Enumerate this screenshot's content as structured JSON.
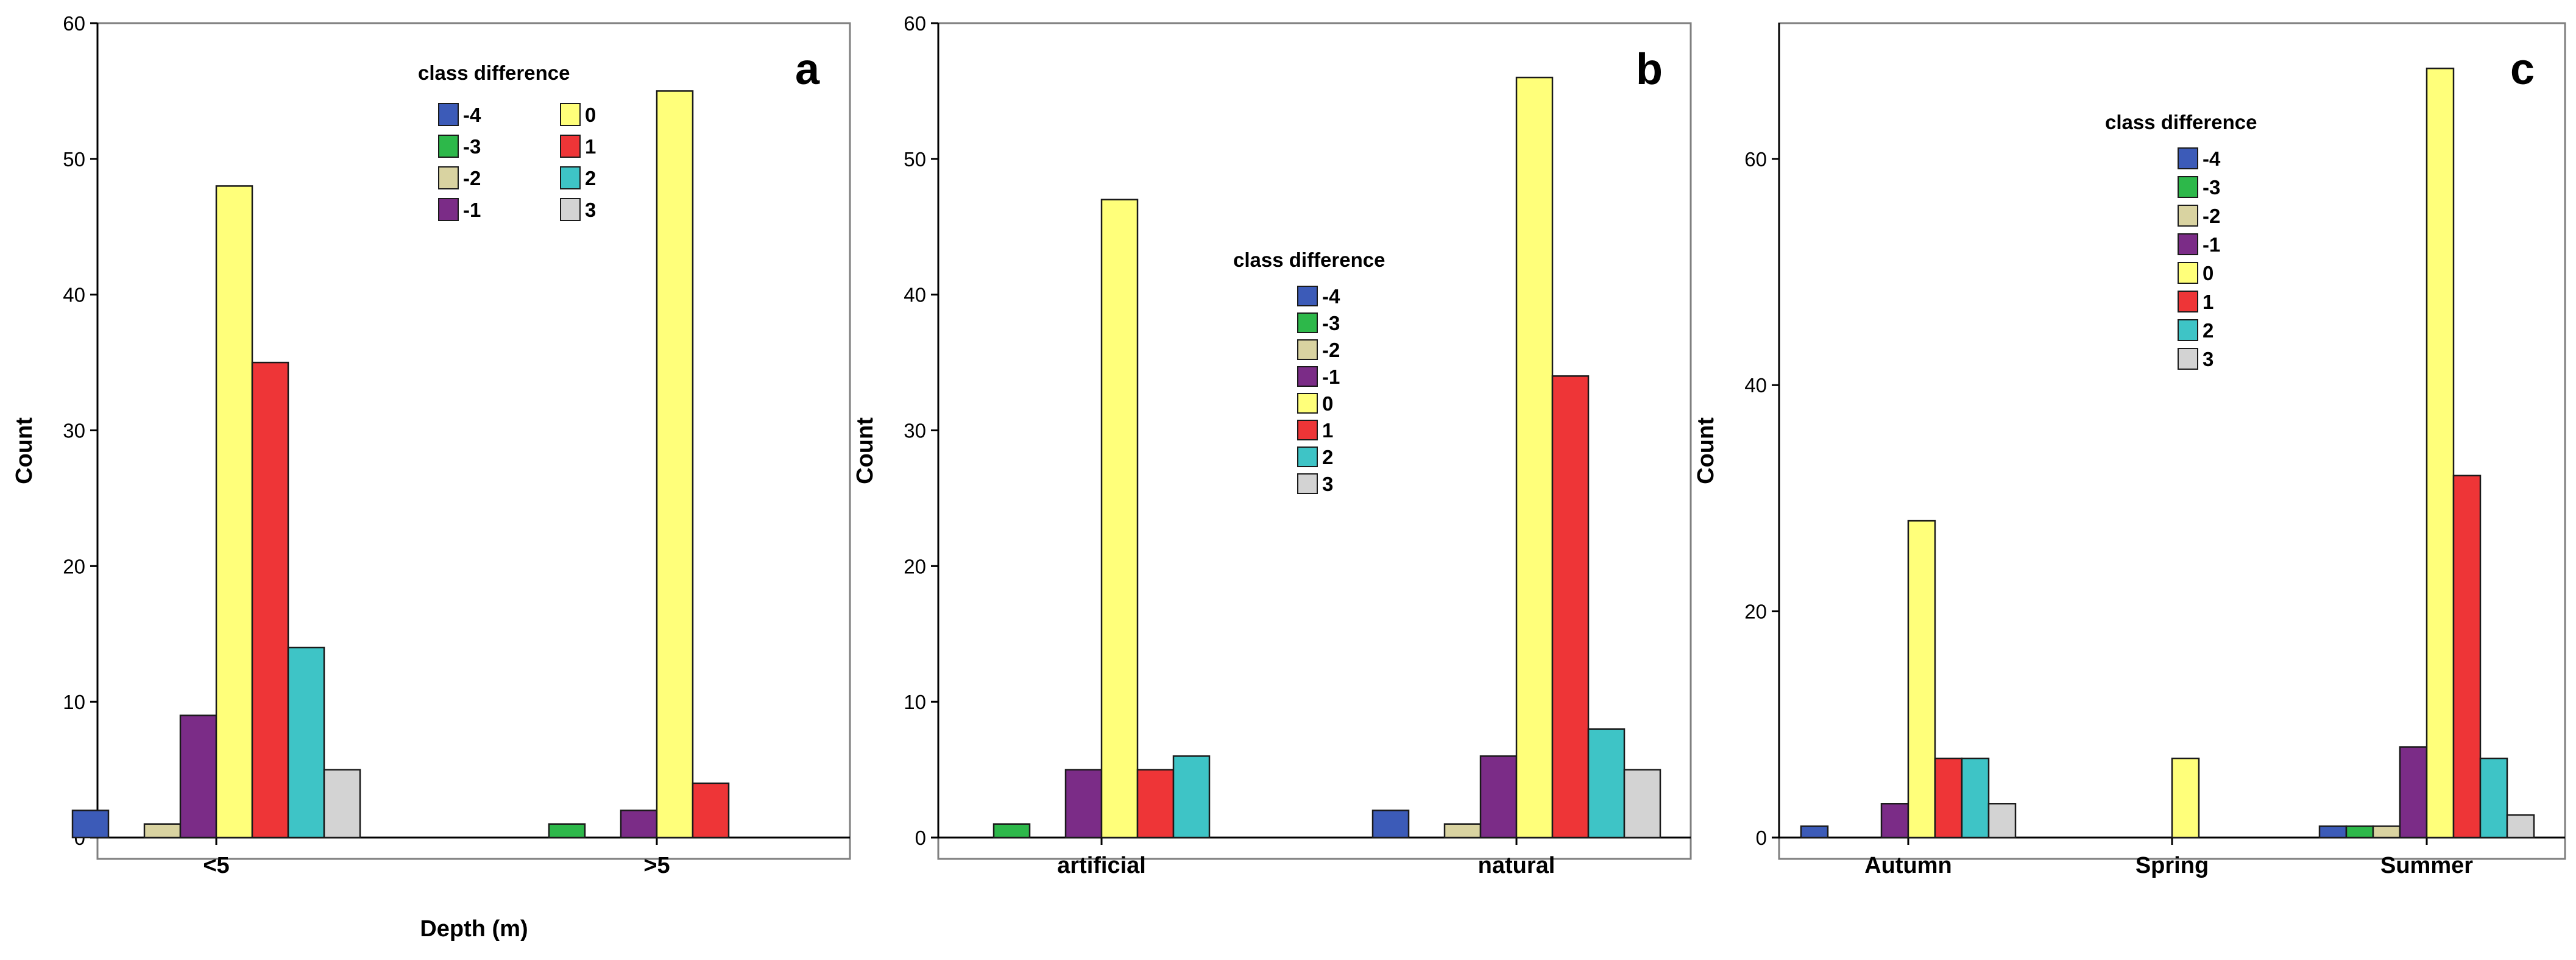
{
  "legend_title": "class difference",
  "series": [
    {
      "name": "-4",
      "color": "#3C5BB8"
    },
    {
      "name": "-3",
      "color": "#2DB84A"
    },
    {
      "name": "-2",
      "color": "#D9D3A1"
    },
    {
      "name": "-1",
      "color": "#7B2C87"
    },
    {
      "name": "0",
      "color": "#FFFF7A"
    },
    {
      "name": "1",
      "color": "#EE3537"
    },
    {
      "name": "2",
      "color": "#3EC4C6"
    },
    {
      "name": "3",
      "color": "#D3D3D3"
    }
  ],
  "chart_data": [
    {
      "id": "a",
      "panel_label": "a",
      "type": "bar",
      "ylabel": "Count",
      "xlabel": "Depth (m)",
      "ylim": [
        0,
        60
      ],
      "yticks": [
        0,
        10,
        20,
        30,
        40,
        50,
        60
      ],
      "categories": [
        "<5",
        ">5"
      ],
      "series": [
        {
          "name": "-4",
          "values": [
            2,
            0
          ]
        },
        {
          "name": "-3",
          "values": [
            0,
            1
          ]
        },
        {
          "name": "-2",
          "values": [
            1,
            0
          ]
        },
        {
          "name": "-1",
          "values": [
            9,
            2
          ]
        },
        {
          "name": "0",
          "values": [
            48,
            55
          ]
        },
        {
          "name": "1",
          "values": [
            35,
            4
          ]
        },
        {
          "name": "2",
          "values": [
            14,
            0
          ]
        },
        {
          "name": "3",
          "values": [
            5,
            0
          ]
        }
      ],
      "legend_placement": "top-center, two columns"
    },
    {
      "id": "b",
      "panel_label": "b",
      "type": "bar",
      "ylabel": "Count",
      "xlabel": "",
      "ylim": [
        0,
        60
      ],
      "yticks": [
        0,
        10,
        20,
        30,
        40,
        50,
        60
      ],
      "categories": [
        "artificial",
        "natural"
      ],
      "series": [
        {
          "name": "-4",
          "values": [
            0,
            2
          ]
        },
        {
          "name": "-3",
          "values": [
            1,
            0
          ]
        },
        {
          "name": "-2",
          "values": [
            0,
            1
          ]
        },
        {
          "name": "-1",
          "values": [
            5,
            6
          ]
        },
        {
          "name": "0",
          "values": [
            47,
            56
          ]
        },
        {
          "name": "1",
          "values": [
            5,
            34
          ]
        },
        {
          "name": "2",
          "values": [
            6,
            8
          ]
        },
        {
          "name": "3",
          "values": [
            0,
            5
          ]
        }
      ],
      "legend_placement": "center, one column"
    },
    {
      "id": "c",
      "panel_label": "c",
      "type": "bar",
      "ylabel": "Count",
      "xlabel": "",
      "ylim": [
        0,
        72
      ],
      "yticks": [
        0,
        20,
        40,
        60
      ],
      "categories": [
        "Autumn",
        "Spring",
        "Summer"
      ],
      "series": [
        {
          "name": "-4",
          "values": [
            1,
            0,
            1
          ]
        },
        {
          "name": "-3",
          "values": [
            0,
            0,
            1
          ]
        },
        {
          "name": "-2",
          "values": [
            0,
            0,
            1
          ]
        },
        {
          "name": "-1",
          "values": [
            3,
            0,
            8
          ]
        },
        {
          "name": "0",
          "values": [
            28,
            7,
            68
          ]
        },
        {
          "name": "1",
          "values": [
            7,
            0,
            32
          ]
        },
        {
          "name": "2",
          "values": [
            7,
            0,
            7
          ]
        },
        {
          "name": "3",
          "values": [
            3,
            0,
            2
          ]
        }
      ],
      "legend_placement": "top-center, one column"
    }
  ]
}
